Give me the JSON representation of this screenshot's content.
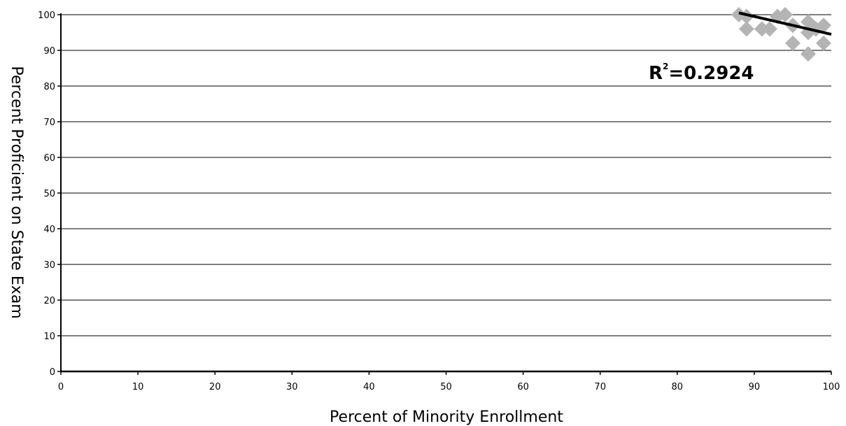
{
  "chart_data": {
    "type": "scatter",
    "title": "",
    "xlabel": "Percent of Minority Enrollment",
    "ylabel": "Percent Proficient on State Exam",
    "xlim": [
      0,
      100
    ],
    "ylim": [
      0,
      100
    ],
    "x_ticks": [
      0,
      10,
      20,
      30,
      40,
      50,
      60,
      70,
      80,
      90,
      100
    ],
    "y_ticks": [
      0,
      10,
      20,
      30,
      40,
      50,
      60,
      70,
      80,
      90,
      100
    ],
    "grid": "horizontal",
    "points": [
      {
        "x": 88,
        "y": 100
      },
      {
        "x": 89,
        "y": 99.5
      },
      {
        "x": 89,
        "y": 96
      },
      {
        "x": 91,
        "y": 96
      },
      {
        "x": 92,
        "y": 96
      },
      {
        "x": 93,
        "y": 99.5
      },
      {
        "x": 94,
        "y": 100
      },
      {
        "x": 95,
        "y": 97
      },
      {
        "x": 95,
        "y": 92
      },
      {
        "x": 97,
        "y": 98
      },
      {
        "x": 97,
        "y": 95
      },
      {
        "x": 97,
        "y": 89
      },
      {
        "x": 98,
        "y": 96
      },
      {
        "x": 99,
        "y": 97
      },
      {
        "x": 99,
        "y": 92
      }
    ],
    "trendline": {
      "x": [
        88,
        100
      ],
      "y": [
        100.5,
        94.5
      ]
    },
    "annotation": {
      "r2_label": "R",
      "r2_exp": "2",
      "r2_value": "=0.2924"
    },
    "colors": {
      "marker": "#b4b4b4",
      "trendline": "#000000",
      "grid": "#000000"
    }
  }
}
